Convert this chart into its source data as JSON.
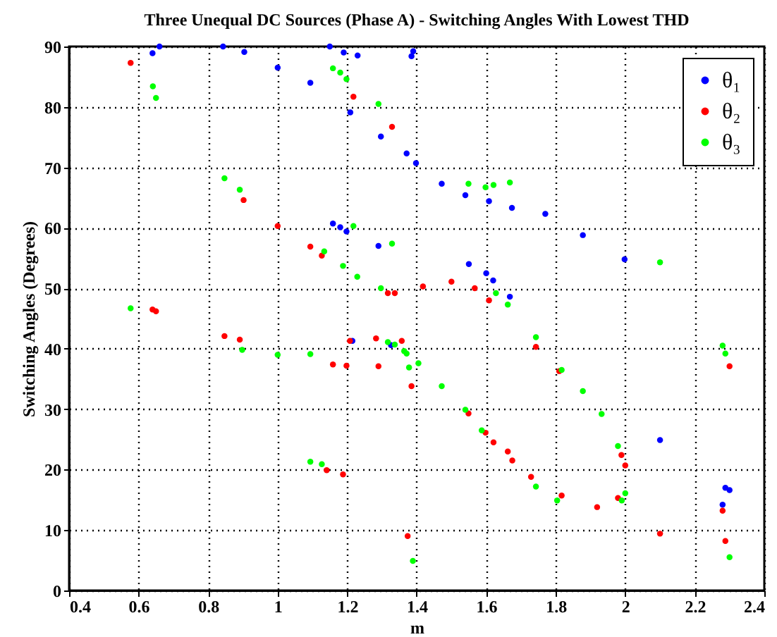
{
  "chart_data": {
    "type": "scatter",
    "title": "Three Unequal DC Sources (Phase A) - Switching Angles With Lowest THD",
    "xlabel": "m",
    "ylabel": "Switching Angles (Degrees)",
    "xlim": [
      0.4,
      2.4
    ],
    "ylim": [
      0,
      90
    ],
    "xticks": [
      0.4,
      0.6,
      0.8,
      1,
      1.2,
      1.4,
      1.6,
      1.8,
      2,
      2.2,
      2.4
    ],
    "yticks": [
      0,
      10,
      20,
      30,
      40,
      50,
      60,
      70,
      80,
      90
    ],
    "grid": true,
    "legend": "top right",
    "marker": "circle",
    "series": [
      {
        "name": "θ₁",
        "color": "#0000ff",
        "x": [
          0.64,
          0.66,
          0.843,
          0.904,
          1.0,
          1.094,
          1.15,
          1.19,
          1.23,
          1.385,
          1.39,
          1.209,
          1.297,
          1.371,
          1.398,
          1.472,
          1.54,
          1.608,
          1.674,
          1.77,
          1.878,
          1.998,
          1.159,
          1.18,
          1.198,
          1.29,
          1.55,
          1.6,
          1.62,
          1.668,
          1.215,
          1.326,
          2.1,
          2.288,
          2.3,
          2.28
        ],
        "values": [
          88.9,
          90,
          90,
          89.1,
          86.5,
          84.0,
          90,
          89,
          88.5,
          88.4,
          89.2,
          79.1,
          75.1,
          72.3,
          70.7,
          67.3,
          65.4,
          64.4,
          63.3,
          62.3,
          58.8,
          54.8,
          60.7,
          60.1,
          59.4,
          57.0,
          54.0,
          52.5,
          51.3,
          48.6,
          41.3,
          40.6,
          24.9,
          17.0,
          16.6,
          14.2
        ]
      },
      {
        "name": "θ₂",
        "color": "#ff0000",
        "x": [
          0.577,
          0.64,
          0.65,
          0.847,
          0.891,
          0.902,
          1.0,
          1.094,
          1.127,
          1.317,
          1.337,
          1.418,
          1.5,
          1.567,
          1.608,
          1.218,
          1.329,
          1.208,
          1.283,
          1.357,
          1.159,
          1.198,
          1.29,
          1.141,
          1.188,
          1.374,
          1.385,
          1.549,
          1.598,
          1.621,
          1.662,
          1.675,
          1.729,
          1.817,
          1.919,
          1.979,
          1.743,
          1.81,
          1.989,
          2.0,
          2.1,
          2.3,
          2.28,
          2.288
        ],
        "values": [
          87.3,
          46.5,
          46.2,
          42.1,
          41.5,
          64.6,
          60.3,
          56.9,
          55.4,
          49.2,
          49.2,
          50.3,
          51.1,
          50.0,
          48.0,
          81.7,
          76.7,
          41.3,
          41.7,
          41.3,
          37.4,
          37.2,
          37.1,
          19.9,
          19.2,
          9.0,
          33.8,
          29.3,
          26.1,
          24.5,
          23.0,
          21.5,
          18.8,
          15.7,
          13.8,
          15.3,
          40.3,
          36.3,
          22.4,
          20.7,
          9.4,
          37.1,
          13.2,
          8.2
        ]
      },
      {
        "name": "θ₃",
        "color": "#00ff00",
        "x": [
          0.577,
          0.641,
          0.65,
          0.847,
          0.891,
          0.898,
          1.0,
          1.094,
          1.094,
          1.127,
          1.159,
          1.18,
          1.198,
          1.29,
          1.218,
          1.329,
          1.134,
          1.188,
          1.229,
          1.297,
          1.317,
          1.371,
          1.337,
          1.364,
          1.405,
          1.472,
          1.54,
          1.587,
          1.743,
          1.804,
          1.99,
          2.0,
          1.378,
          1.389,
          1.628,
          1.662,
          1.743,
          1.817,
          1.878,
          1.932,
          1.979,
          1.549,
          1.598,
          1.621,
          1.668,
          2.1,
          2.28,
          2.288,
          2.3
        ],
        "values": [
          46.7,
          83.4,
          81.5,
          68.2,
          66.3,
          39.8,
          39.0,
          39.1,
          21.3,
          20.9,
          86.4,
          85.7,
          84.6,
          80.5,
          60.3,
          57.4,
          56.1,
          53.7,
          51.9,
          50.0,
          41.1,
          39.2,
          40.7,
          39.6,
          37.6,
          33.8,
          29.9,
          26.5,
          17.2,
          14.9,
          14.9,
          16.1,
          36.9,
          4.9,
          49.2,
          47.3,
          41.9,
          36.5,
          33.0,
          29.2,
          23.9,
          67.3,
          66.7,
          67.1,
          67.5,
          54.3,
          40.5,
          39.2,
          5.5
        ]
      }
    ]
  }
}
